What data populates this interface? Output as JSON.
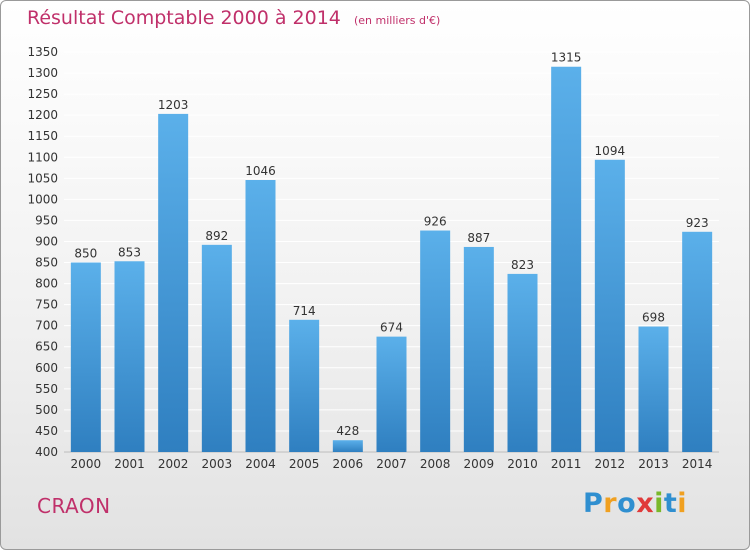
{
  "title": "Résultat Comptable 2000 à 2014",
  "unit_note": "(en milliers d'€)",
  "place": "CRAON",
  "logo": {
    "text": "Proxiti",
    "letters": [
      {
        "char": "P",
        "color": "#2f8fd0"
      },
      {
        "char": "r",
        "color": "#f0a020"
      },
      {
        "char": "o",
        "color": "#2f8fd0"
      },
      {
        "char": "x",
        "color": "#e03a3a"
      },
      {
        "char": "i",
        "color": "#7ab82a"
      },
      {
        "char": "t",
        "color": "#2f8fd0"
      },
      {
        "char": "i",
        "color": "#f0a020"
      }
    ]
  },
  "colors": {
    "title": "#c0306a",
    "bar_top": "#5bb0ea",
    "bar_bottom": "#2f7fc0",
    "grid": "#ffffff",
    "axis_text": "#333333"
  },
  "chart_data": {
    "type": "bar",
    "title": "Résultat Comptable 2000 à 2014",
    "subtitle": "(en milliers d'€)",
    "xlabel": "",
    "ylabel": "",
    "categories": [
      "2000",
      "2001",
      "2002",
      "2003",
      "2004",
      "2005",
      "2006",
      "2007",
      "2008",
      "2009",
      "2010",
      "2011",
      "2012",
      "2013",
      "2014"
    ],
    "values": [
      850,
      853,
      1203,
      892,
      1046,
      714,
      428,
      674,
      926,
      887,
      823,
      1315,
      1094,
      698,
      923
    ],
    "ylim": [
      400,
      1350
    ],
    "yticks": [
      400,
      450,
      500,
      550,
      600,
      650,
      700,
      750,
      800,
      850,
      900,
      950,
      1000,
      1050,
      1100,
      1150,
      1200,
      1250,
      1300,
      1350
    ],
    "grid": true,
    "data_labels": true
  }
}
